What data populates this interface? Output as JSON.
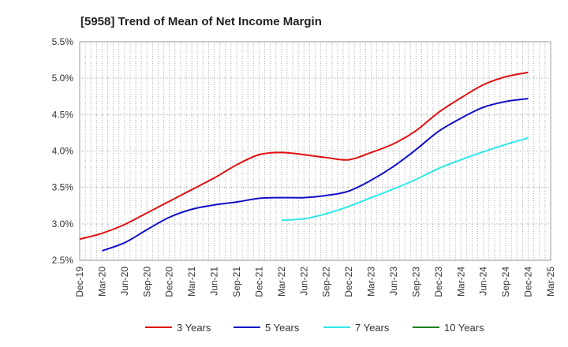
{
  "chart_data": {
    "type": "line",
    "title": "[5958]  Trend of Mean of Net Income Margin",
    "xlabel": "",
    "ylabel": "",
    "x": [
      "Dec-19",
      "Mar-20",
      "Jun-20",
      "Sep-20",
      "Dec-20",
      "Mar-21",
      "Jun-21",
      "Sep-21",
      "Dec-21",
      "Mar-22",
      "Jun-22",
      "Sep-22",
      "Dec-22",
      "Mar-23",
      "Jun-23",
      "Sep-23",
      "Dec-23",
      "Mar-24",
      "Jun-24",
      "Sep-24",
      "Dec-24",
      "Mar-25"
    ],
    "ylim": [
      2.5,
      5.5
    ],
    "yticks": [
      2.5,
      3.0,
      3.5,
      4.0,
      4.5,
      5.0,
      5.5
    ],
    "ytick_labels": [
      "2.5%",
      "3.0%",
      "3.5%",
      "4.0%",
      "4.5%",
      "5.0%",
      "5.5%"
    ],
    "grid": true,
    "legend_position": "bottom",
    "series": [
      {
        "name": "3 Years",
        "color": "#e01010",
        "values": [
          2.79,
          2.87,
          2.99,
          3.15,
          3.31,
          3.47,
          3.63,
          3.81,
          3.95,
          3.98,
          3.95,
          3.91,
          3.88,
          3.98,
          4.1,
          4.28,
          4.53,
          4.73,
          4.91,
          5.02,
          5.08,
          null
        ]
      },
      {
        "name": "5 Years",
        "color": "#1010c8",
        "values": [
          null,
          2.63,
          2.74,
          2.92,
          3.09,
          3.2,
          3.26,
          3.3,
          3.35,
          3.36,
          3.36,
          3.39,
          3.45,
          3.6,
          3.79,
          4.02,
          4.27,
          4.45,
          4.6,
          4.68,
          4.72,
          null
        ]
      },
      {
        "name": "7 Years",
        "color": "#30e8e8",
        "values": [
          null,
          null,
          null,
          null,
          null,
          null,
          null,
          null,
          null,
          3.05,
          3.07,
          3.14,
          3.24,
          3.36,
          3.48,
          3.61,
          3.76,
          3.88,
          3.99,
          4.09,
          4.18,
          null
        ]
      },
      {
        "name": "10 Years",
        "color": "#208020",
        "values": [
          null,
          null,
          null,
          null,
          null,
          null,
          null,
          null,
          null,
          null,
          null,
          null,
          null,
          null,
          null,
          null,
          null,
          null,
          null,
          null,
          null,
          null
        ]
      }
    ]
  }
}
